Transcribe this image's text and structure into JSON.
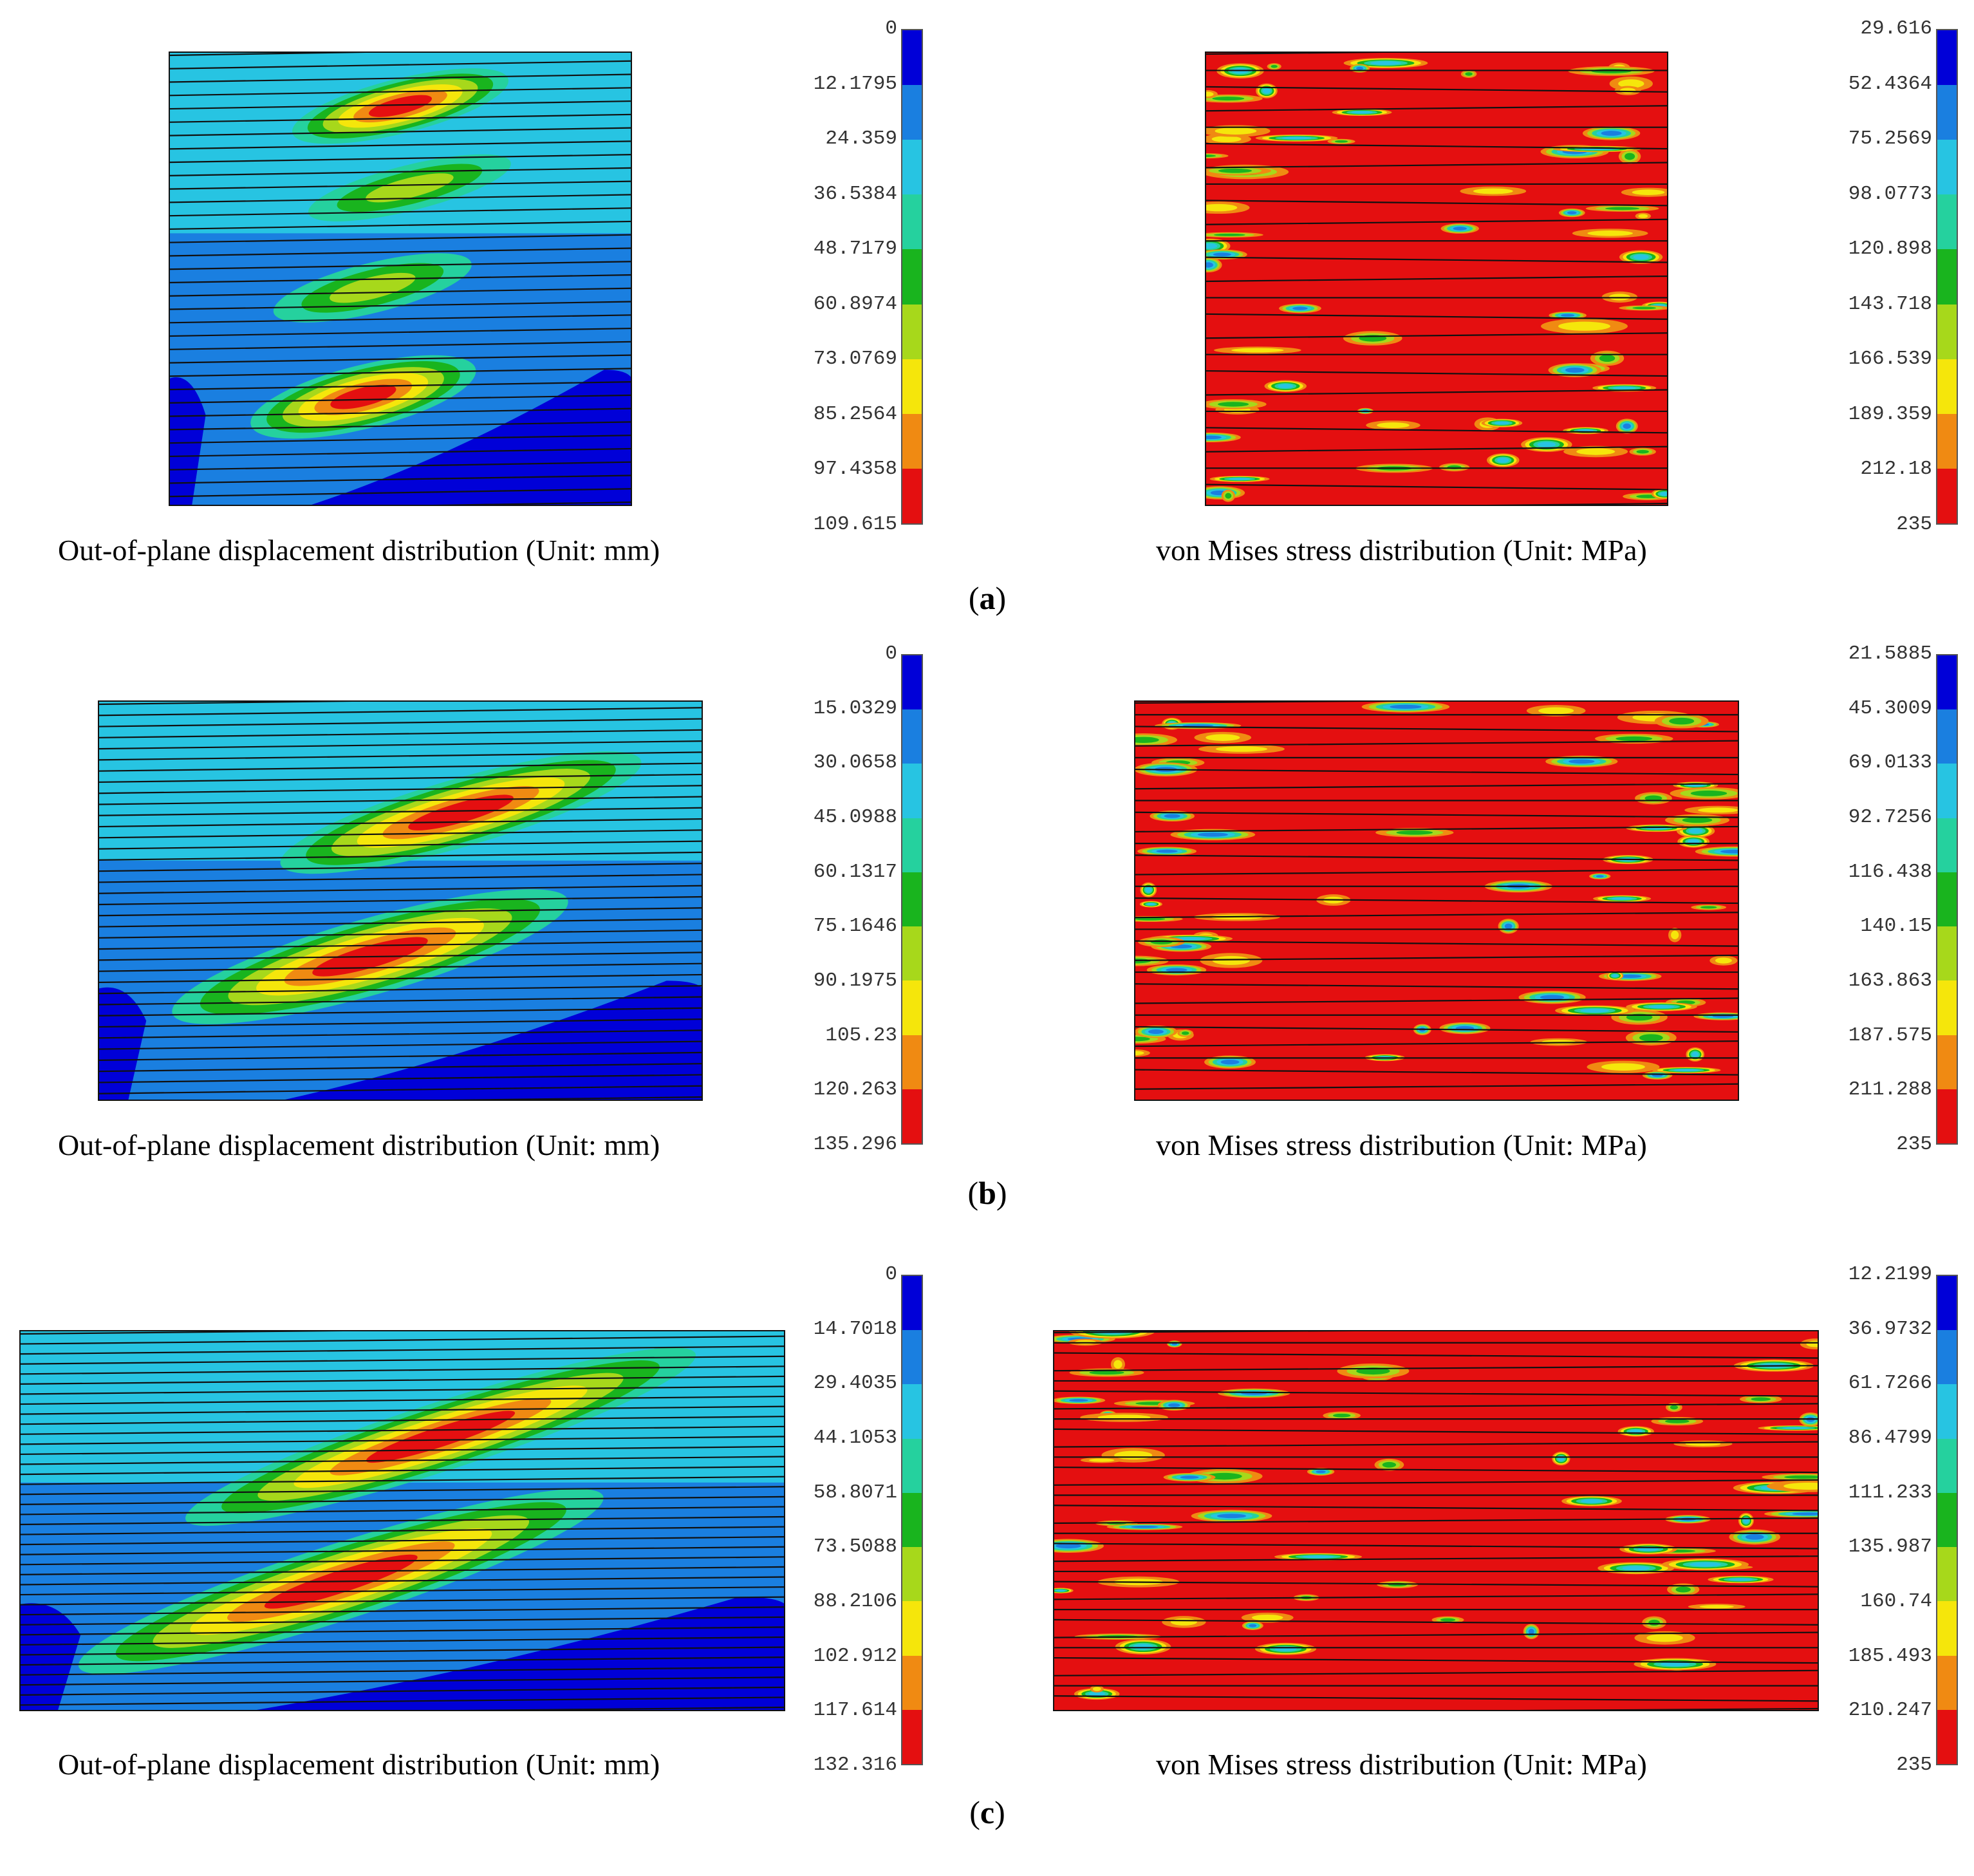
{
  "colorbar_colors": [
    "#0000d8",
    "#1a7fe0",
    "#27c4e2",
    "#25d19e",
    "#19b41e",
    "#a7d81b",
    "#f5e60b",
    "#f08a12",
    "#e40f10"
  ],
  "panels": [
    {
      "label": "a",
      "displacement": {
        "caption": "Out-of-plane displacement distribution (Unit: mm)",
        "ticks": [
          "0",
          "12.1795",
          "24.359",
          "36.5384",
          "48.7179",
          "60.8974",
          "73.0769",
          "85.2564",
          "97.4358",
          "109.615"
        ]
      },
      "stress": {
        "caption": "von Mises stress distribution (Unit: MPa)",
        "ticks": [
          "29.616",
          "52.4364",
          "75.2569",
          "98.0773",
          "120.898",
          "143.718",
          "166.539",
          "189.359",
          "212.18",
          "235"
        ]
      }
    },
    {
      "label": "b",
      "displacement": {
        "caption": "Out-of-plane displacement distribution (Unit: mm)",
        "ticks": [
          "0",
          "15.0329",
          "30.0658",
          "45.0988",
          "60.1317",
          "75.1646",
          "90.1975",
          "105.23",
          "120.263",
          "135.296"
        ]
      },
      "stress": {
        "caption": "von Mises stress distribution (Unit: MPa)",
        "ticks": [
          "21.5885",
          "45.3009",
          "69.0133",
          "92.7256",
          "116.438",
          "140.15",
          "163.863",
          "187.575",
          "211.288",
          "235"
        ]
      }
    },
    {
      "label": "c",
      "displacement": {
        "caption": "Out-of-plane displacement distribution (Unit: mm)",
        "ticks": [
          "0",
          "14.7018",
          "29.4035",
          "44.1053",
          "58.8071",
          "73.5088",
          "88.2106",
          "102.912",
          "117.614",
          "132.316"
        ]
      },
      "stress": {
        "caption": "von Mises stress distribution (Unit: MPa)",
        "ticks": [
          "12.2199",
          "36.9732",
          "61.7266",
          "86.4799",
          "111.233",
          "135.987",
          "160.74",
          "185.493",
          "210.247",
          "235"
        ]
      }
    }
  ]
}
